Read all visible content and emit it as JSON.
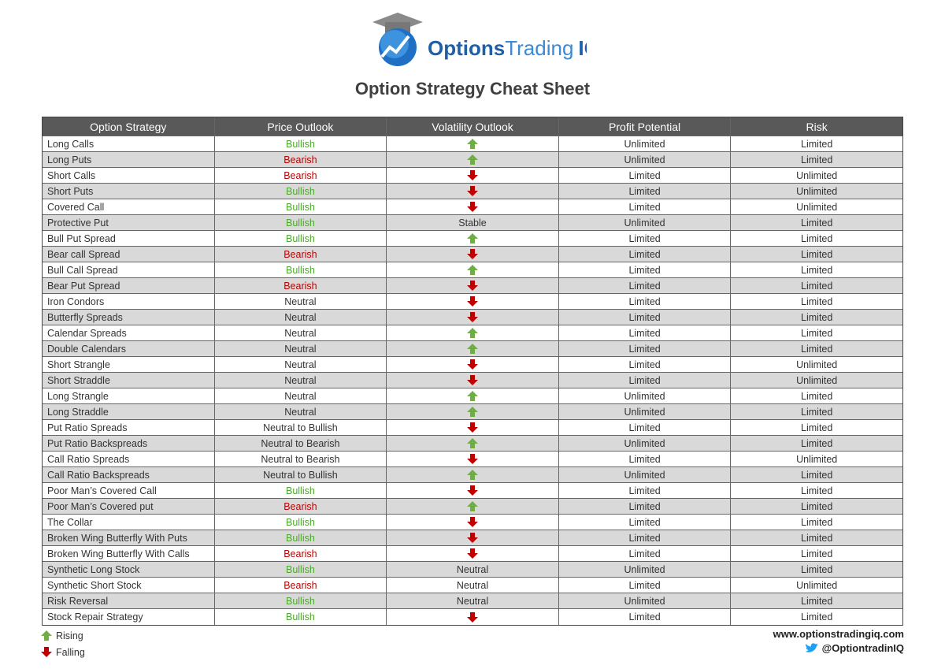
{
  "header": {
    "logo": [
      "Options",
      "Trading",
      "IQ"
    ],
    "title": "Option Strategy Cheat Sheet"
  },
  "table": {
    "columns": [
      "Option Strategy",
      "Price Outlook",
      "Volatility Outlook",
      "Profit Potential",
      "Risk"
    ],
    "outlook_colors": {
      "Bullish": "#4ea72e",
      "Bearish": "#c00000"
    },
    "rows": [
      [
        "Long Calls",
        "Bullish",
        "Rising",
        "Unlimited",
        "Limited"
      ],
      [
        "Long Puts",
        "Bearish",
        "Rising",
        "Unlimited",
        "Limited"
      ],
      [
        "Short Calls",
        "Bearish",
        "Falling",
        "Limited",
        "Unlimited"
      ],
      [
        "Short Puts",
        "Bullish",
        "Falling",
        "Limited",
        "Unlimited"
      ],
      [
        "Covered Call",
        "Bullish",
        "Falling",
        "Limited",
        "Unlimited"
      ],
      [
        "Protective Put",
        "Bullish",
        "Stable",
        "Unlimited",
        "Limited"
      ],
      [
        "Bull Put Spread",
        "Bullish",
        "Rising",
        "Limited",
        "Limited"
      ],
      [
        "Bear call Spread",
        "Bearish",
        "Falling",
        "Limited",
        "Limited"
      ],
      [
        "Bull Call Spread",
        "Bullish",
        "Rising",
        "Limited",
        "Limited"
      ],
      [
        "Bear Put Spread",
        "Bearish",
        "Falling",
        "Limited",
        "Limited"
      ],
      [
        "Iron Condors",
        "Neutral",
        "Falling",
        "Limited",
        "Limited"
      ],
      [
        "Butterfly Spreads",
        "Neutral",
        "Falling",
        "Limited",
        "Limited"
      ],
      [
        "Calendar Spreads",
        "Neutral",
        "Rising",
        "Limited",
        "Limited"
      ],
      [
        "Double Calendars",
        "Neutral",
        "Rising",
        "Limited",
        "Limited"
      ],
      [
        "Short Strangle",
        "Neutral",
        "Falling",
        "Limited",
        "Unlimited"
      ],
      [
        "Short Straddle",
        "Neutral",
        "Falling",
        "Limited",
        "Unlimited"
      ],
      [
        "Long Strangle",
        "Neutral",
        "Rising",
        "Unlimited",
        "Limited"
      ],
      [
        "Long Straddle",
        "Neutral",
        "Rising",
        "Unlimited",
        "Limited"
      ],
      [
        "Put Ratio Spreads",
        "Neutral to Bullish",
        "Falling",
        "Limited",
        "Limited"
      ],
      [
        "Put Ratio Backspreads",
        "Neutral to Bearish",
        "Rising",
        "Unlimited",
        "Limited"
      ],
      [
        "Call Ratio Spreads",
        "Neutral to Bearish",
        "Falling",
        "Limited",
        "Unlimited"
      ],
      [
        "Call Ratio Backspreads",
        "Neutral to Bullish",
        "Rising",
        "Unlimited",
        "Limited"
      ],
      [
        "Poor Man’s Covered Call",
        "Bullish",
        "Falling",
        "Limited",
        "Limited"
      ],
      [
        "Poor Man’s Covered put",
        "Bearish",
        "Rising",
        "Limited",
        "Limited"
      ],
      [
        "The Collar",
        "Bullish",
        "Falling",
        "Limited",
        "Limited"
      ],
      [
        "Broken Wing Butterfly With Puts",
        "Bullish",
        "Falling",
        "Limited",
        "Limited"
      ],
      [
        "Broken Wing Butterfly With Calls",
        "Bearish",
        "Falling",
        "Limited",
        "Limited"
      ],
      [
        "Synthetic Long Stock",
        "Bullish",
        "Neutral",
        "Unlimited",
        "Limited"
      ],
      [
        "Synthetic Short Stock",
        "Bearish",
        "Neutral",
        "Limited",
        "Unlimited"
      ],
      [
        "Risk Reversal",
        "Bullish",
        "Neutral",
        "Unlimited",
        "Limited"
      ],
      [
        "Stock Repair Strategy",
        "Bullish",
        "Falling",
        "Limited",
        "Limited"
      ]
    ]
  },
  "legend": [
    {
      "label": "Rising",
      "color": "#70ad47"
    },
    {
      "label": "Falling",
      "color": "#c00000"
    }
  ],
  "footer": {
    "website": "www.optionstradingiq.com",
    "twitter": "@OptiontradinIQ"
  }
}
